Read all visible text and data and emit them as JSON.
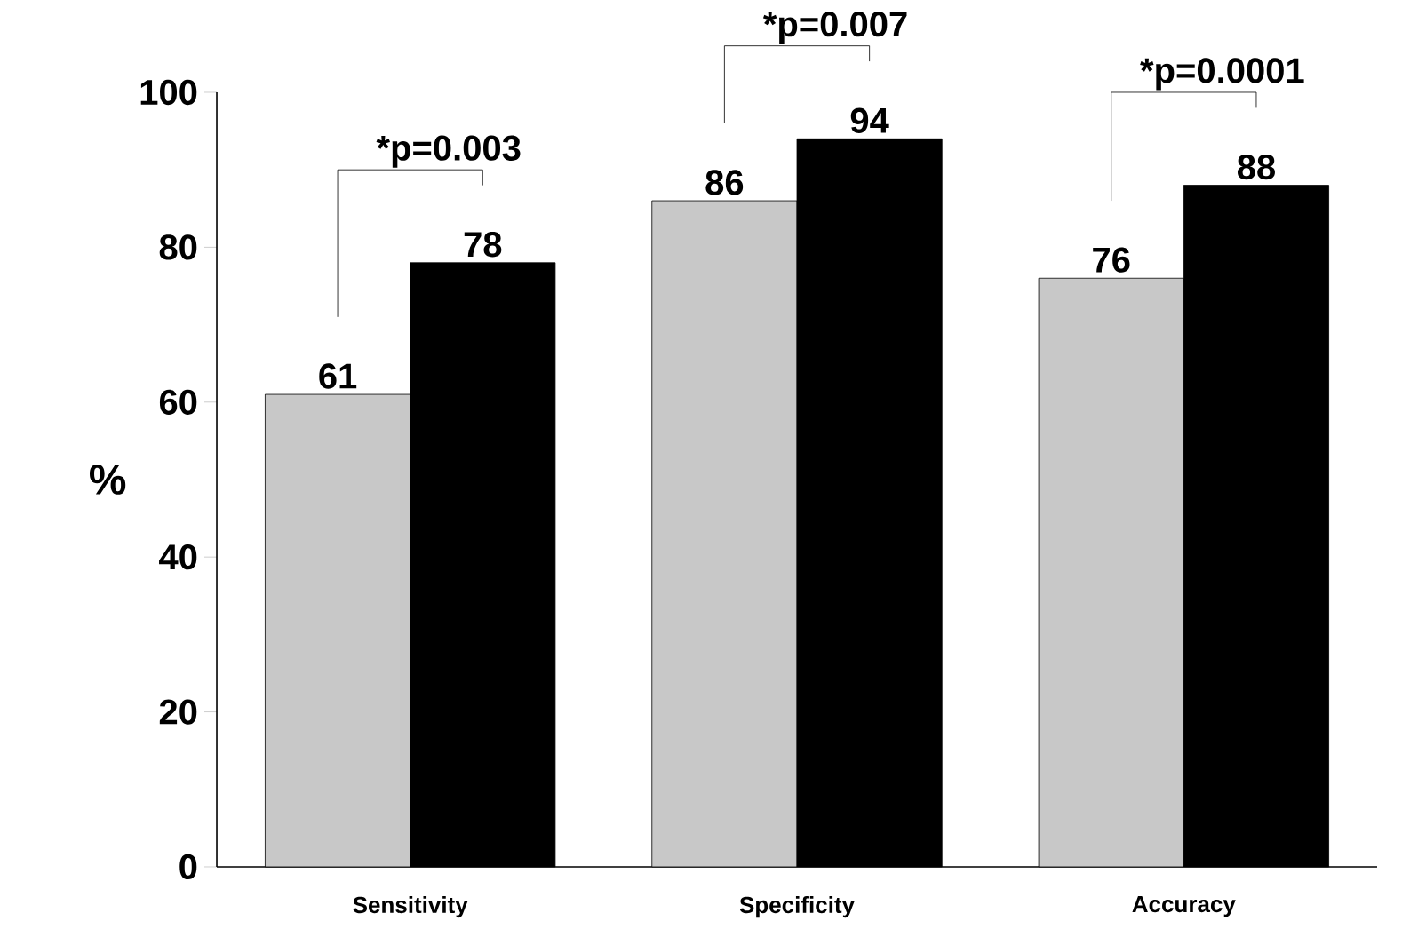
{
  "chart_data": {
    "type": "bar",
    "ylabel": "%",
    "categories": [
      "Sensitivity",
      "Specificity",
      "Accuracy"
    ],
    "series": [
      {
        "color": "#c8c8c8",
        "values": [
          61,
          86,
          76
        ]
      },
      {
        "color": "#000000",
        "values": [
          78,
          94,
          88
        ]
      }
    ],
    "ylim": [
      0,
      100
    ],
    "yticks": [
      0,
      20,
      40,
      60,
      80,
      100
    ],
    "data_labels": true,
    "annotations": [
      "*p=0.003",
      "*p=0.007",
      "*p=0.0001"
    ]
  }
}
